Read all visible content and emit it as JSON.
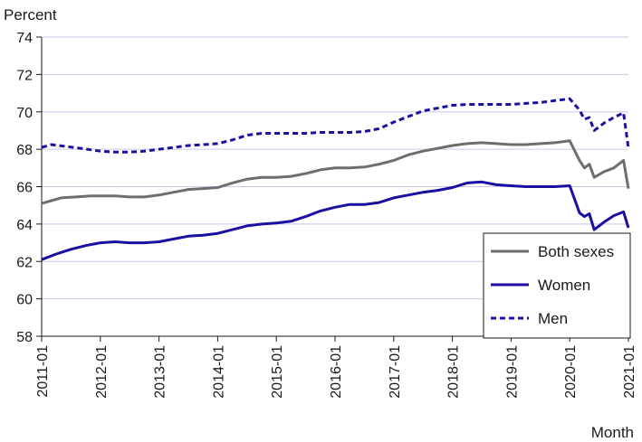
{
  "chart_data": {
    "type": "line",
    "ylabel": "Percent",
    "xlabel": "Month",
    "ylim": [
      58,
      74
    ],
    "yticks": [
      58,
      60,
      62,
      64,
      66,
      68,
      70,
      72,
      74
    ],
    "xlim": [
      "2011-01",
      "2021-01"
    ],
    "xticks": [
      "2011-01",
      "2012-01",
      "2013-01",
      "2014-01",
      "2015-01",
      "2016-01",
      "2017-01",
      "2018-01",
      "2019-01",
      "2020-01",
      "2021-01"
    ],
    "grid": "horizontal",
    "legend_position": "bottom-right",
    "series": [
      {
        "name": "Both sexes",
        "color": "#6e6e6e",
        "style": "solid",
        "points": [
          [
            "2011-01",
            65.1
          ],
          [
            "2011-03",
            65.25
          ],
          [
            "2011-05",
            65.4
          ],
          [
            "2011-08",
            65.45
          ],
          [
            "2011-11",
            65.5
          ],
          [
            "2012-01",
            65.5
          ],
          [
            "2012-04",
            65.5
          ],
          [
            "2012-07",
            65.45
          ],
          [
            "2012-10",
            65.45
          ],
          [
            "2013-01",
            65.55
          ],
          [
            "2013-04",
            65.7
          ],
          [
            "2013-07",
            65.85
          ],
          [
            "2013-10",
            65.9
          ],
          [
            "2014-01",
            65.95
          ],
          [
            "2014-04",
            66.2
          ],
          [
            "2014-07",
            66.4
          ],
          [
            "2014-10",
            66.5
          ],
          [
            "2015-01",
            66.5
          ],
          [
            "2015-04",
            66.55
          ],
          [
            "2015-07",
            66.7
          ],
          [
            "2015-10",
            66.9
          ],
          [
            "2016-01",
            67.0
          ],
          [
            "2016-04",
            67.0
          ],
          [
            "2016-07",
            67.05
          ],
          [
            "2016-10",
            67.2
          ],
          [
            "2017-01",
            67.4
          ],
          [
            "2017-04",
            67.7
          ],
          [
            "2017-07",
            67.9
          ],
          [
            "2017-10",
            68.05
          ],
          [
            "2018-01",
            68.2
          ],
          [
            "2018-04",
            68.3
          ],
          [
            "2018-07",
            68.35
          ],
          [
            "2018-10",
            68.3
          ],
          [
            "2019-01",
            68.25
          ],
          [
            "2019-04",
            68.25
          ],
          [
            "2019-07",
            68.3
          ],
          [
            "2019-10",
            68.35
          ],
          [
            "2020-01",
            68.45
          ],
          [
            "2020-03",
            67.4
          ],
          [
            "2020-04",
            67.0
          ],
          [
            "2020-05",
            67.2
          ],
          [
            "2020-06",
            66.5
          ],
          [
            "2020-08",
            66.8
          ],
          [
            "2020-10",
            67.0
          ],
          [
            "2020-12",
            67.4
          ],
          [
            "2021-01",
            65.9
          ]
        ]
      },
      {
        "name": "Women",
        "color": "#1a0fa0",
        "style": "solid",
        "points": [
          [
            "2011-01",
            62.1
          ],
          [
            "2011-04",
            62.4
          ],
          [
            "2011-07",
            62.65
          ],
          [
            "2011-10",
            62.85
          ],
          [
            "2012-01",
            63.0
          ],
          [
            "2012-04",
            63.05
          ],
          [
            "2012-07",
            63.0
          ],
          [
            "2012-10",
            63.0
          ],
          [
            "2013-01",
            63.05
          ],
          [
            "2013-04",
            63.2
          ],
          [
            "2013-07",
            63.35
          ],
          [
            "2013-10",
            63.4
          ],
          [
            "2014-01",
            63.5
          ],
          [
            "2014-04",
            63.7
          ],
          [
            "2014-07",
            63.9
          ],
          [
            "2014-10",
            64.0
          ],
          [
            "2015-01",
            64.05
          ],
          [
            "2015-04",
            64.15
          ],
          [
            "2015-07",
            64.4
          ],
          [
            "2015-10",
            64.7
          ],
          [
            "2016-01",
            64.9
          ],
          [
            "2016-04",
            65.05
          ],
          [
            "2016-07",
            65.05
          ],
          [
            "2016-10",
            65.15
          ],
          [
            "2017-01",
            65.4
          ],
          [
            "2017-04",
            65.55
          ],
          [
            "2017-07",
            65.7
          ],
          [
            "2017-10",
            65.8
          ],
          [
            "2018-01",
            65.95
          ],
          [
            "2018-04",
            66.2
          ],
          [
            "2018-07",
            66.25
          ],
          [
            "2018-10",
            66.1
          ],
          [
            "2019-01",
            66.05
          ],
          [
            "2019-04",
            66.0
          ],
          [
            "2019-07",
            66.0
          ],
          [
            "2019-10",
            66.0
          ],
          [
            "2020-01",
            66.05
          ],
          [
            "2020-03",
            64.6
          ],
          [
            "2020-04",
            64.4
          ],
          [
            "2020-05",
            64.55
          ],
          [
            "2020-06",
            63.7
          ],
          [
            "2020-08",
            64.1
          ],
          [
            "2020-10",
            64.45
          ],
          [
            "2020-12",
            64.65
          ],
          [
            "2021-01",
            63.8
          ]
        ]
      },
      {
        "name": "Men",
        "color": "#1a0fa0",
        "style": "dashed",
        "points": [
          [
            "2011-01",
            68.1
          ],
          [
            "2011-03",
            68.25
          ],
          [
            "2011-06",
            68.15
          ],
          [
            "2011-09",
            68.05
          ],
          [
            "2012-01",
            67.9
          ],
          [
            "2012-04",
            67.85
          ],
          [
            "2012-07",
            67.85
          ],
          [
            "2012-10",
            67.9
          ],
          [
            "2013-01",
            68.0
          ],
          [
            "2013-04",
            68.1
          ],
          [
            "2013-07",
            68.2
          ],
          [
            "2013-10",
            68.25
          ],
          [
            "2014-01",
            68.3
          ],
          [
            "2014-04",
            68.5
          ],
          [
            "2014-07",
            68.75
          ],
          [
            "2014-10",
            68.85
          ],
          [
            "2015-01",
            68.85
          ],
          [
            "2015-04",
            68.85
          ],
          [
            "2015-07",
            68.85
          ],
          [
            "2015-10",
            68.9
          ],
          [
            "2016-01",
            68.9
          ],
          [
            "2016-04",
            68.9
          ],
          [
            "2016-07",
            68.95
          ],
          [
            "2016-10",
            69.1
          ],
          [
            "2017-01",
            69.45
          ],
          [
            "2017-04",
            69.75
          ],
          [
            "2017-07",
            70.05
          ],
          [
            "2017-10",
            70.2
          ],
          [
            "2018-01",
            70.35
          ],
          [
            "2018-04",
            70.4
          ],
          [
            "2018-07",
            70.4
          ],
          [
            "2018-10",
            70.4
          ],
          [
            "2019-01",
            70.4
          ],
          [
            "2019-04",
            70.45
          ],
          [
            "2019-07",
            70.5
          ],
          [
            "2019-10",
            70.6
          ],
          [
            "2020-01",
            70.7
          ],
          [
            "2020-03",
            70.1
          ],
          [
            "2020-04",
            69.6
          ],
          [
            "2020-05",
            69.7
          ],
          [
            "2020-06",
            69.0
          ],
          [
            "2020-08",
            69.4
          ],
          [
            "2020-10",
            69.7
          ],
          [
            "2020-12",
            69.95
          ],
          [
            "2021-01",
            68.05
          ]
        ]
      }
    ]
  }
}
